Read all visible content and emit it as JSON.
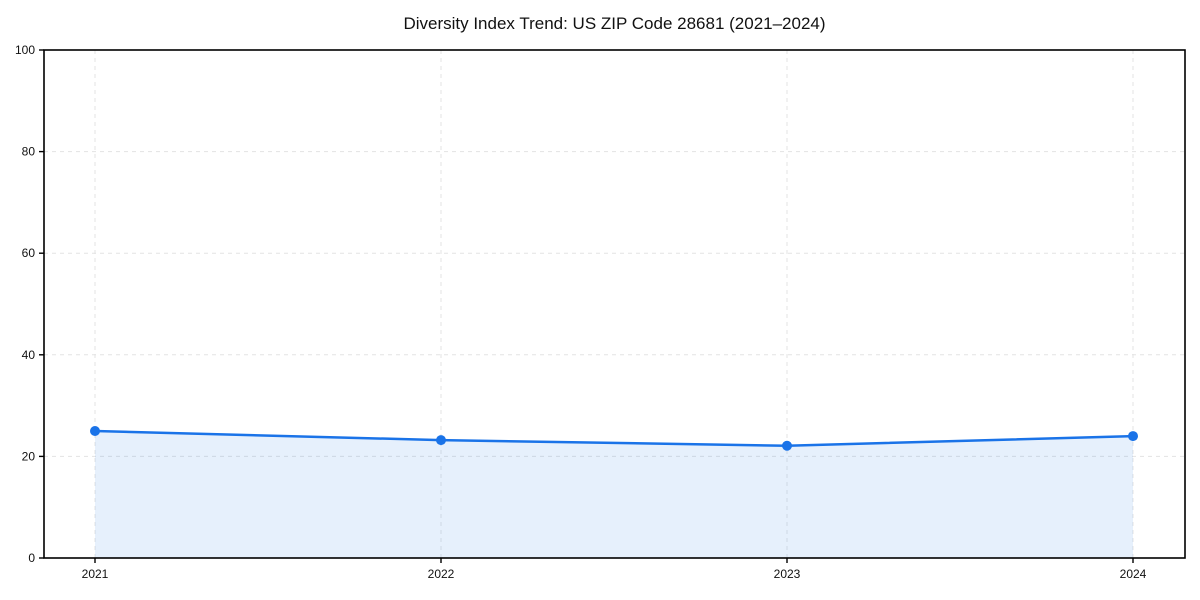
{
  "figure": {
    "background": "#ffffff"
  },
  "chart_data": {
    "type": "area",
    "title": "Diversity Index Trend: US ZIP Code 28681 (2021–2024)",
    "x": [
      2021,
      2022,
      2023,
      2024
    ],
    "xticks": [
      "2021",
      "2022",
      "2023",
      "2024"
    ],
    "series": [
      {
        "name": "Diversity Index",
        "values": [
          25.0,
          23.2,
          22.1,
          24.0
        ]
      }
    ],
    "ylim": [
      0,
      100
    ],
    "yticks": [
      0,
      20,
      40,
      60,
      80,
      100
    ],
    "xlabel": "",
    "ylabel": "",
    "grid": "dashed both axes",
    "legend_position": "none",
    "colors": {
      "line": "#1a73e8",
      "marker": "#1a73e8",
      "area_fill": "rgba(26,115,232,0.11)",
      "grid": "#e3e3e3",
      "axis": "#000000",
      "tick_text": "#111111",
      "background": "#ffffff"
    }
  }
}
